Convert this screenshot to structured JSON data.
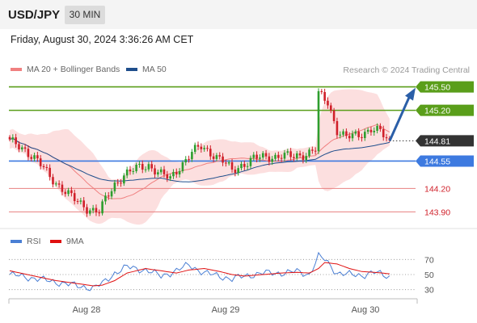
{
  "header": {
    "symbol": "USD/JPY",
    "timeframe": "30 MIN"
  },
  "timestamp": "Friday, August 30, 2024 3:36:26 AM CET",
  "legend": {
    "ma20_label": "MA 20 + Bollinger Bands",
    "ma20_color": "#f08080",
    "ma50_label": "MA 50",
    "ma50_color": "#1f4e8c"
  },
  "credit": "Research © 2024 Trading Central",
  "rsi_legend": {
    "rsi_label": "RSI",
    "rsi_color": "#4a7fd4",
    "ma_label": "9MA",
    "ma_color": "#e01010"
  },
  "colors": {
    "up_candle": "#2e9e2e",
    "down_candle": "#d0202a",
    "resistance": "#5a9e1a",
    "pivot": "#3d7ae0",
    "support": "#e88080",
    "bb_fill": "#fbd4d4",
    "forecast_arrow": "#2b5fa8",
    "current_price_bg": "#333333"
  },
  "price_levels": [
    {
      "label": "145.50",
      "value": 145.5,
      "kind": "resistance"
    },
    {
      "label": "145.20",
      "value": 145.2,
      "kind": "resistance"
    },
    {
      "label": "144.81",
      "value": 144.81,
      "kind": "current"
    },
    {
      "label": "144.55",
      "value": 144.55,
      "kind": "pivot"
    },
    {
      "label": "144.20",
      "value": 144.2,
      "kind": "support"
    },
    {
      "label": "143.90",
      "value": 143.9,
      "kind": "support"
    }
  ],
  "chart_data": [
    {
      "type": "candlestick",
      "title": "",
      "xlabel": "",
      "ylabel": "",
      "x_tick_labels": [
        "Aug 28",
        "Aug 29",
        "Aug 30"
      ],
      "ylim": [
        143.8,
        145.62
      ],
      "series": [
        {
          "name": "MA 20 + Bollinger Bands"
        },
        {
          "name": "MA 50"
        }
      ],
      "anchors": [
        [
          0,
          144.8
        ],
        [
          5,
          144.7
        ],
        [
          9,
          144.55
        ],
        [
          13,
          144.35
        ],
        [
          17,
          144.2
        ],
        [
          21,
          144.05
        ],
        [
          25,
          143.95
        ],
        [
          29,
          143.9
        ],
        [
          31,
          144.05
        ],
        [
          34,
          144.25
        ],
        [
          37,
          144.38
        ],
        [
          41,
          144.45
        ],
        [
          45,
          144.5
        ],
        [
          49,
          144.38
        ],
        [
          52,
          144.32
        ],
        [
          55,
          144.48
        ],
        [
          59,
          144.66
        ],
        [
          62,
          144.73
        ],
        [
          66,
          144.64
        ],
        [
          69,
          144.55
        ],
        [
          72,
          144.42
        ],
        [
          75,
          144.5
        ],
        [
          79,
          144.58
        ],
        [
          83,
          144.6
        ],
        [
          88,
          144.62
        ],
        [
          92,
          144.6
        ],
        [
          96,
          144.65
        ],
        [
          99,
          144.7
        ],
        [
          100,
          145.4
        ],
        [
          103,
          145.3
        ],
        [
          106,
          144.95
        ],
        [
          109,
          144.85
        ],
        [
          113,
          144.88
        ],
        [
          117,
          144.97
        ],
        [
          120,
          144.92
        ],
        [
          123,
          144.78
        ]
      ],
      "candle_count": 124
    },
    {
      "type": "line",
      "title": "",
      "ylim": [
        20,
        80
      ],
      "y_tick_labels": [
        "70",
        "50",
        "30"
      ],
      "series": [
        {
          "name": "RSI",
          "x": [
            0,
            8,
            15,
            22,
            27,
            30,
            34,
            38,
            44,
            49,
            54,
            58,
            63,
            68,
            72,
            76,
            82,
            88,
            93,
            97,
            100,
            102,
            106,
            110,
            114,
            118,
            123
          ],
          "values": [
            50,
            45,
            40,
            35,
            32,
            38,
            52,
            60,
            56,
            48,
            55,
            63,
            52,
            48,
            44,
            48,
            52,
            52,
            54,
            50,
            74,
            70,
            52,
            50,
            49,
            53,
            47
          ]
        },
        {
          "name": "9MA",
          "x": [
            0,
            8,
            15,
            22,
            27,
            30,
            34,
            38,
            44,
            49,
            54,
            58,
            63,
            68,
            72,
            76,
            82,
            88,
            93,
            97,
            100,
            102,
            106,
            110,
            114,
            118,
            123
          ],
          "values": [
            55,
            48,
            42,
            38,
            35,
            36,
            42,
            52,
            58,
            55,
            52,
            56,
            58,
            54,
            50,
            48,
            50,
            52,
            53,
            52,
            58,
            66,
            64,
            58,
            54,
            53,
            51
          ]
        }
      ]
    }
  ]
}
